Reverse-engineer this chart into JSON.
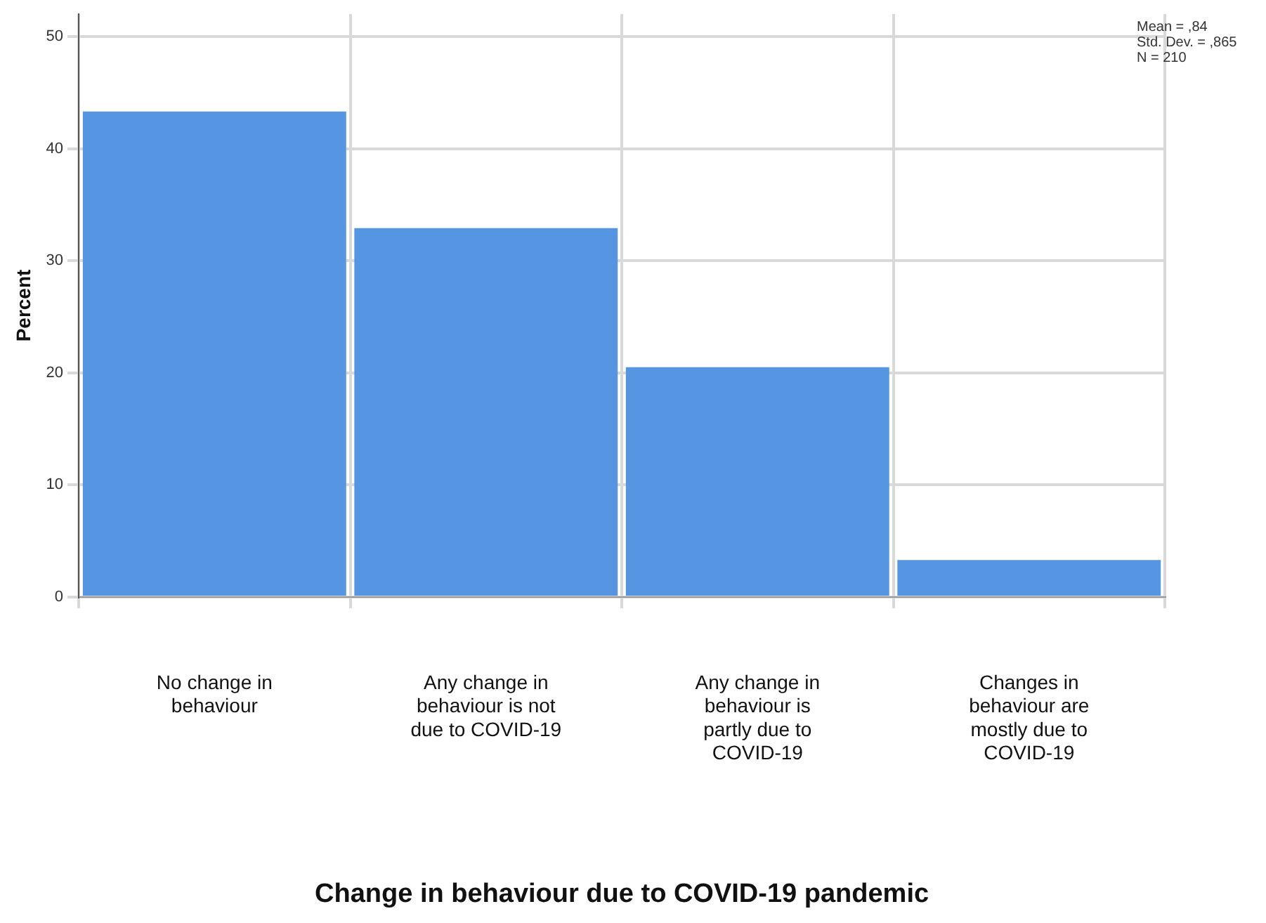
{
  "chart_data": {
    "type": "bar",
    "xlabel": "Change in behaviour due to COVID-19 pandemic",
    "ylabel": "Percent",
    "categories": [
      "No change in behaviour",
      "Any change in behaviour is not due to COVID-19",
      "Any change in behaviour is partly due to COVID-19",
      "Changes in behaviour are mostly due to COVID-19"
    ],
    "values": [
      43.3,
      32.9,
      20.5,
      3.3
    ],
    "color": "#5595e2",
    "ylim": [
      0,
      52
    ],
    "yticks": [
      0,
      10,
      20,
      30,
      40,
      50
    ],
    "grid": true,
    "legend": false,
    "annotations": [
      "Mean = ,84",
      "Std. Dev. = ,865",
      "N = 210"
    ]
  }
}
